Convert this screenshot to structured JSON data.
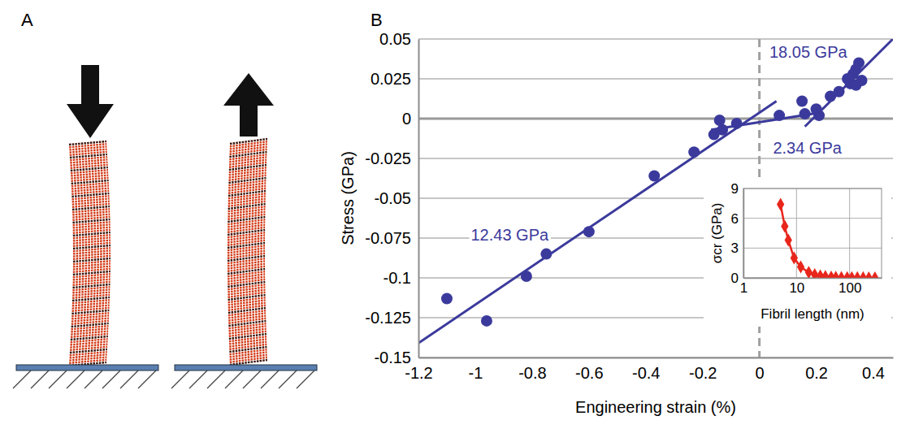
{
  "panel_labels": [
    "A",
    "B"
  ],
  "chart_data": [
    {
      "type": "scatter",
      "x_label": "Engineering strain (%)",
      "y_label": "Stress (GPa)",
      "xlim": [
        -1.2,
        0.47
      ],
      "xticks": [
        -1.2,
        -1,
        -0.8,
        -0.6,
        -0.4,
        -0.2,
        0,
        0.2,
        0.4
      ],
      "ylim": [
        -0.15,
        0.05
      ],
      "yticks": [
        -0.15,
        -0.125,
        -0.1,
        -0.075,
        -0.05,
        -0.025,
        0,
        0.025,
        0.05
      ],
      "grid": true,
      "series": [
        {
          "type": "scatter",
          "color": "#3b3a9c",
          "marker": "circle",
          "x": [
            -1.1,
            -0.96,
            -0.82,
            -0.75,
            -0.6,
            -0.37,
            -0.23,
            -0.16,
            -0.14,
            -0.13,
            -0.08,
            0.07,
            0.15,
            0.16,
            0.2,
            0.21,
            0.25,
            0.28,
            0.31,
            0.32,
            0.33,
            0.34,
            0.34,
            0.35,
            0.36
          ],
          "values": [
            -0.113,
            -0.127,
            -0.099,
            -0.085,
            -0.071,
            -0.036,
            -0.021,
            -0.01,
            -0.001,
            -0.007,
            -0.003,
            0.002,
            0.011,
            0.003,
            0.006,
            0.002,
            0.014,
            0.017,
            0.025,
            0.022,
            0.028,
            0.031,
            0.021,
            0.035,
            0.024
          ]
        },
        {
          "name": "12.43 GPa",
          "type": "line",
          "color": "#3b3a9c",
          "line_style": "solid",
          "x": [
            -1.2,
            0.06
          ],
          "values": [
            -0.141,
            0.011
          ]
        },
        {
          "name": "2.34 GPa",
          "type": "line",
          "color": "#3b3a9c",
          "line_style": "solid",
          "x": [
            -0.17,
            0.22
          ],
          "values": [
            -0.007,
            0.004
          ]
        },
        {
          "name": "18.05 GPa",
          "type": "line",
          "color": "#3b3a9c",
          "line_style": "solid",
          "x": [
            0.16,
            0.47
          ],
          "values": [
            -0.005,
            0.05
          ]
        }
      ]
    },
    {
      "type": "line",
      "x_label": "Fibril length (nm)",
      "y_label": "σcr (GPa)",
      "log": "x",
      "xlim": [
        1,
        400
      ],
      "xticks": [
        1,
        10,
        100
      ],
      "ylim": [
        0,
        9
      ],
      "yticks": [
        0,
        3,
        6,
        9
      ],
      "grid": true,
      "series": [
        {
          "color": "#e8261c",
          "marker": "diamond",
          "x": [
            5,
            6,
            7,
            9,
            12,
            17,
            22,
            28,
            35,
            45,
            55,
            70,
            90,
            110,
            140,
            180,
            230,
            300
          ],
          "values": [
            7.4,
            5.2,
            3.8,
            2.0,
            1.1,
            0.55,
            0.32,
            0.2,
            0.13,
            0.08,
            0.05,
            0.03,
            0.02,
            0.015,
            0.01,
            0.007,
            0.005,
            0.003
          ]
        }
      ]
    }
  ]
}
